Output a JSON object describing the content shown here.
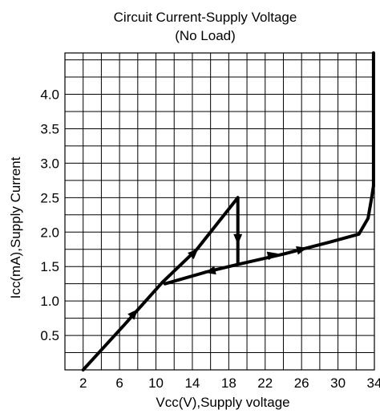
{
  "chart_data": {
    "type": "line",
    "title": "Circuit Current-Supply Voltage",
    "subtitle": "(No Load)",
    "xlabel": "Vcc(V),Supply voltage",
    "ylabel": "Icc(mA),Supply Current",
    "xlim": [
      0,
      34
    ],
    "ylim": [
      0,
      4.6
    ],
    "x_ticks": [
      2,
      6,
      10,
      14,
      18,
      22,
      26,
      30,
      34
    ],
    "x_tick_labels": [
      "2",
      "6",
      "10",
      "14",
      "18",
      "22",
      "26",
      "30",
      "34"
    ],
    "y_ticks": [
      0.5,
      1.0,
      1.5,
      2.0,
      2.5,
      3.0,
      3.5,
      4.0
    ],
    "y_tick_labels": [
      "0.5",
      "1.0",
      "1.5",
      "2.0",
      "2.5",
      "3.0",
      "3.5",
      "4.0"
    ],
    "grid": true,
    "grid_x_step": 2,
    "grid_y_step": 0.25,
    "line_color": "#000000",
    "series": [
      {
        "points": [
          [
            2,
            0
          ],
          [
            6.5,
            0.65
          ],
          [
            10.7,
            1.27
          ],
          [
            14.5,
            1.75
          ],
          [
            19,
            2.5
          ],
          [
            19,
            1.53
          ],
          [
            15.5,
            1.42
          ],
          [
            11,
            1.25
          ]
        ]
      },
      {
        "points": [
          [
            19,
            1.53
          ],
          [
            24,
            1.68
          ],
          [
            29,
            1.85
          ],
          [
            32.3,
            1.97
          ],
          [
            33.3,
            2.2
          ],
          [
            33.7,
            2.5
          ],
          [
            33.9,
            2.67
          ]
        ]
      },
      {
        "points": [
          [
            33.9,
            2.67
          ],
          [
            33.9,
            4.6
          ]
        ]
      }
    ],
    "arrows": [
      {
        "x": 7.6,
        "y": 0.82
      },
      {
        "x": 14.2,
        "y": 1.7
      },
      {
        "x": 19,
        "y": 1.9
      },
      {
        "x": 16,
        "y": 1.43
      },
      {
        "x": 22.8,
        "y": 1.67
      },
      {
        "x": 26,
        "y": 1.75
      }
    ]
  }
}
